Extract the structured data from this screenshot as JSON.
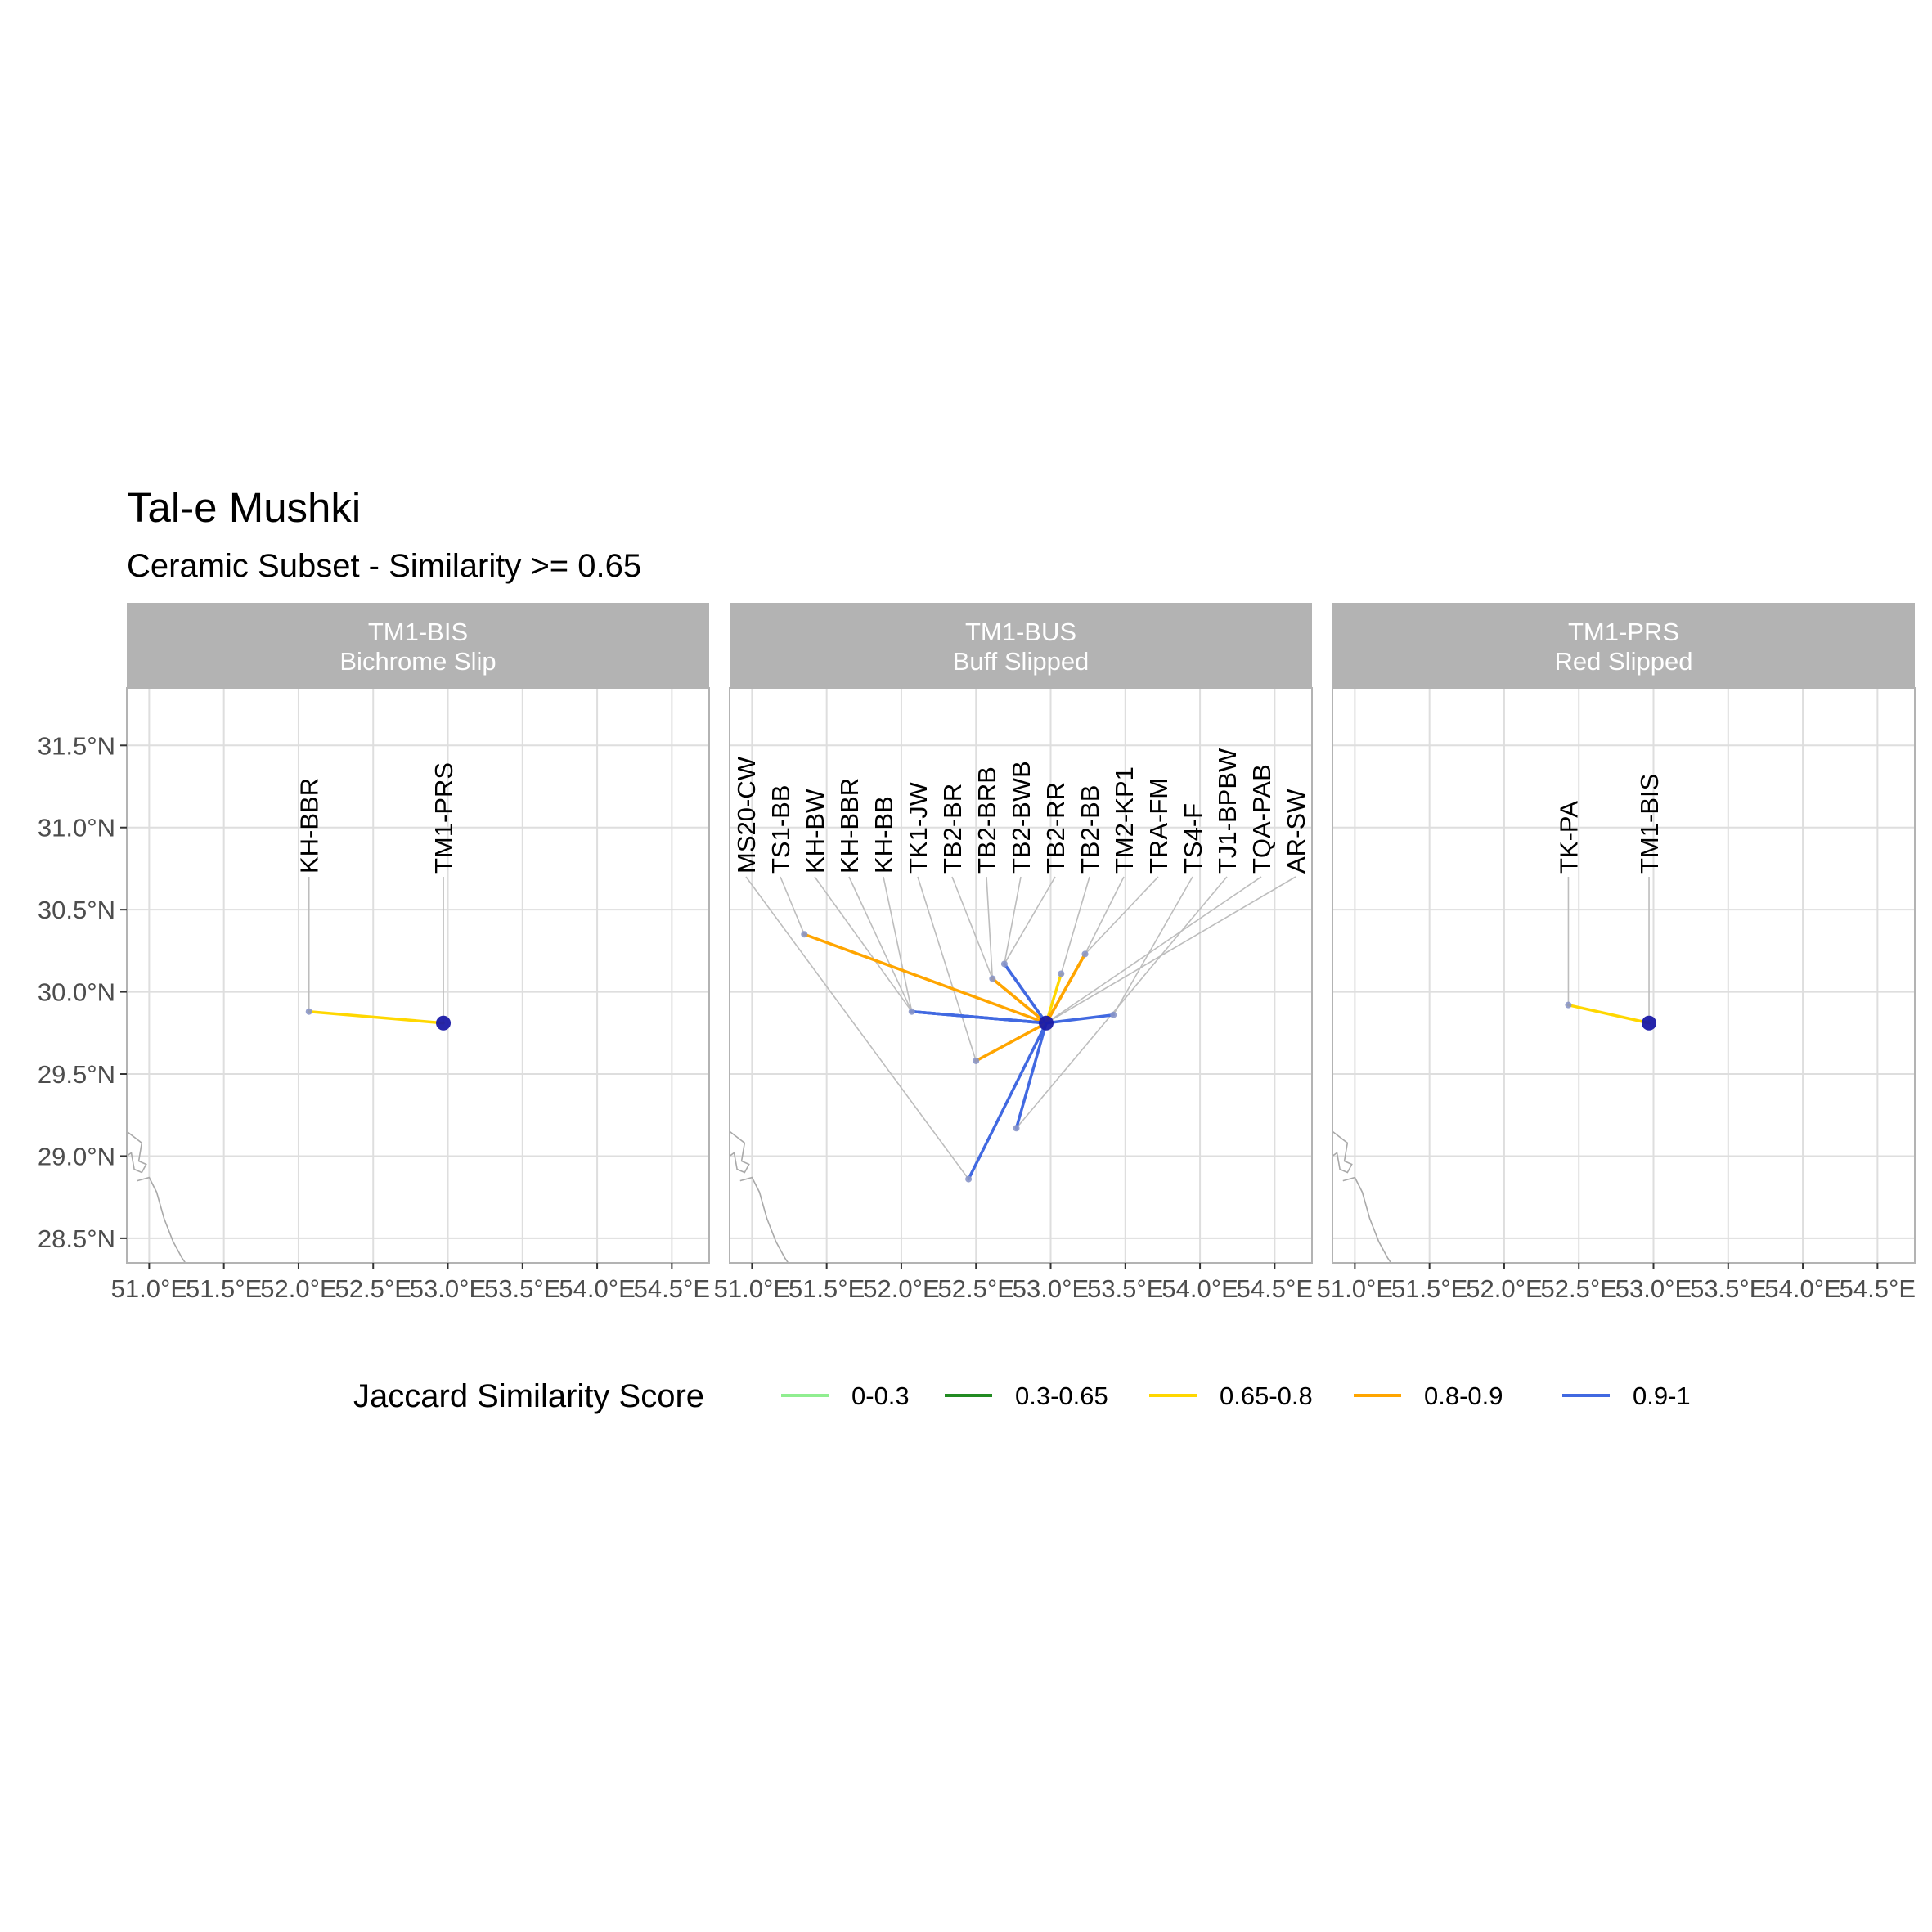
{
  "title": "Tal-e Mushki",
  "subtitle": "Ceramic Subset - Similarity >= 0.65",
  "axes": {
    "x_ticks": [
      "51.0°E",
      "51.5°E",
      "52.0°E",
      "52.5°E",
      "53.0°E",
      "53.5°E",
      "54.0°E",
      "54.5°E"
    ],
    "y_ticks": [
      "28.5°N",
      "29.0°N",
      "29.5°N",
      "30.0°N",
      "30.5°N",
      "31.0°N",
      "31.5°N"
    ]
  },
  "legend": {
    "title": "Jaccard Similarity Score",
    "position": "bottom",
    "items": [
      {
        "label": "0-0.3",
        "color": "#90ee90"
      },
      {
        "label": "0.3-0.65",
        "color": "#228b22"
      },
      {
        "label": "0.65-0.8",
        "color": "#ffd700"
      },
      {
        "label": "0.8-0.9",
        "color": "#ffa500"
      },
      {
        "label": "0.9-1",
        "color": "#4169e1"
      }
    ]
  },
  "colors": {
    "focal_site": "#1a1aa6",
    "linked_site": "#8a96c8",
    "strip_background": "#b3b3b3",
    "grid": "#dedede",
    "leader_line": "#bdbdbd",
    "coastline": "#a9a9a9"
  },
  "chart_data": {
    "type": "map",
    "grid": true,
    "xlim": [
      50.85,
      54.75
    ],
    "ylim": [
      28.35,
      31.85
    ],
    "panels": [
      {
        "code": "TM1-BIS",
        "name": "Bichrome Slip",
        "focal": {
          "lon": 52.97,
          "lat": 29.81
        },
        "links": [
          {
            "label": "KH-BBR",
            "lon": 52.07,
            "lat": 29.88,
            "score_bin": "0.65-0.8"
          },
          {
            "label": "TM1-PRS",
            "lon": 52.97,
            "lat": 29.81,
            "score_bin": null
          }
        ]
      },
      {
        "code": "TM1-BUS",
        "name": "Buff Slipped",
        "focal": {
          "lon": 52.97,
          "lat": 29.81
        },
        "links": [
          {
            "label": "MS20-CW",
            "lon": 52.45,
            "lat": 28.86,
            "score_bin": "0.9-1"
          },
          {
            "label": "TS1-BB",
            "lon": 51.35,
            "lat": 30.35,
            "score_bin": "0.8-0.9"
          },
          {
            "label": "KH-BW",
            "lon": 52.07,
            "lat": 29.88,
            "score_bin": "0.9-1"
          },
          {
            "label": "KH-BBR",
            "lon": 52.07,
            "lat": 29.88,
            "score_bin": "0.9-1"
          },
          {
            "label": "KH-BB",
            "lon": 52.07,
            "lat": 29.88,
            "score_bin": "0.9-1"
          },
          {
            "label": "TK1-JW",
            "lon": 52.5,
            "lat": 29.58,
            "score_bin": "0.8-0.9"
          },
          {
            "label": "TB2-BR",
            "lon": 52.61,
            "lat": 30.08,
            "score_bin": "0.8-0.9"
          },
          {
            "label": "TB2-BRB",
            "lon": 52.61,
            "lat": 30.08,
            "score_bin": "0.8-0.9"
          },
          {
            "label": "TB2-BWB",
            "lon": 52.69,
            "lat": 30.17,
            "score_bin": "0.9-1"
          },
          {
            "label": "TB2-RR",
            "lon": 52.69,
            "lat": 30.17,
            "score_bin": "0.9-1"
          },
          {
            "label": "TB2-BB",
            "lon": 53.07,
            "lat": 30.11,
            "score_bin": "0.65-0.8"
          },
          {
            "label": "TM2-KP1",
            "lon": 53.23,
            "lat": 30.23,
            "score_bin": "0.8-0.9"
          },
          {
            "label": "TRA-FM",
            "lon": 53.23,
            "lat": 30.23,
            "score_bin": "0.8-0.9"
          },
          {
            "label": "TS4-F",
            "lon": 53.42,
            "lat": 29.86,
            "score_bin": "0.9-1"
          },
          {
            "label": "TJ1-BPBW",
            "lon": 52.77,
            "lat": 29.17,
            "score_bin": "0.9-1"
          },
          {
            "label": "TQA-PAB",
            "lon": 52.97,
            "lat": 29.81,
            "score_bin": null
          },
          {
            "label": "AR-SW",
            "lon": 52.97,
            "lat": 29.81,
            "score_bin": null
          }
        ]
      },
      {
        "code": "TM1-PRS",
        "name": "Red Slipped",
        "focal": {
          "lon": 52.97,
          "lat": 29.81
        },
        "links": [
          {
            "label": "TK-PA",
            "lon": 52.43,
            "lat": 29.92,
            "score_bin": "0.65-0.8"
          },
          {
            "label": "TM1-BIS",
            "lon": 52.97,
            "lat": 29.81,
            "score_bin": null
          }
        ]
      }
    ]
  }
}
